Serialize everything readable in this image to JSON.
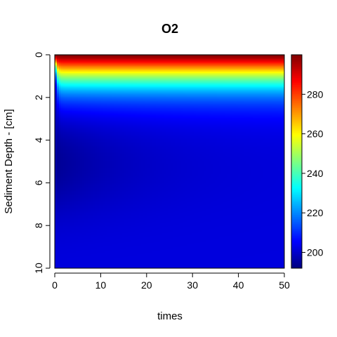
{
  "chart_data": {
    "type": "heatmap",
    "title": "O2",
    "xlabel": "times",
    "ylabel": "Sediment Depth - [cm]",
    "x_range": [
      0,
      50
    ],
    "y_range": [
      0,
      10
    ],
    "y_reversed": true,
    "x_ticks": [
      0,
      10,
      20,
      30,
      40,
      50
    ],
    "y_ticks": [
      0,
      2,
      4,
      6,
      8,
      10
    ],
    "colorbar": {
      "range": [
        192,
        300
      ],
      "ticks": [
        200,
        220,
        240,
        260,
        280
      ]
    },
    "colormap": [
      "#00007F",
      "#0000FF",
      "#007FFF",
      "#00FFFF",
      "#7FFF7F",
      "#FFFF00",
      "#FF7F00",
      "#FF0000",
      "#7F0000"
    ],
    "surface_concentration": 300,
    "deep_concentration": 202,
    "grid": false,
    "legend": "colorbar-right"
  }
}
